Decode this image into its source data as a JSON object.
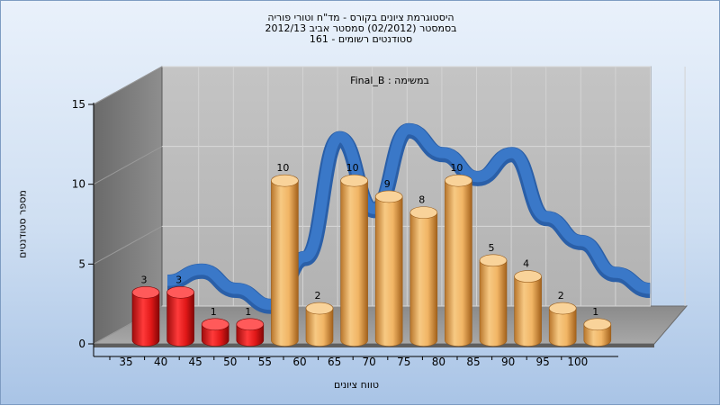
{
  "title_lines": [
    "היסטוגרמת ציונים בקורס - מד\"ח וטורי פוריה",
    "בסמסטר  (02/2012)  סמסטר אביב 2012/13",
    "סטודנטים רשומים - 161"
  ],
  "chart_data": {
    "type": "bar",
    "title": "היסטוגרמת ציונים בקורס - מד\"ח וטורי פוריה",
    "assignment_label": "במשימה : Final_B",
    "xlabel": "טווח ציונים",
    "ylabel": "מספר סטודנטים",
    "x_ticks": [
      "35",
      "40",
      "45",
      "50",
      "55",
      "60",
      "65",
      "70",
      "75",
      "80",
      "85",
      "90",
      "95",
      "100"
    ],
    "y_ticks": [
      "0",
      "5",
      "10",
      "15"
    ],
    "ylim": [
      0,
      15
    ],
    "grid": true,
    "legend": "none",
    "bars": [
      {
        "value": 3,
        "color": "red"
      },
      {
        "value": 3,
        "color": "red"
      },
      {
        "value": 1,
        "color": "red"
      },
      {
        "value": 1,
        "color": "red"
      },
      {
        "value": 10,
        "color": "orange"
      },
      {
        "value": 2,
        "color": "orange"
      },
      {
        "value": 10,
        "color": "orange"
      },
      {
        "value": 9,
        "color": "orange"
      },
      {
        "value": 8,
        "color": "orange"
      },
      {
        "value": 10,
        "color": "orange"
      },
      {
        "value": 5,
        "color": "orange"
      },
      {
        "value": 4,
        "color": "orange"
      },
      {
        "value": 2,
        "color": "orange"
      },
      {
        "value": 1,
        "color": "orange"
      }
    ],
    "trend_line": {
      "type": "line",
      "values": [
        2.5,
        3.2,
        2.0,
        1.0,
        4.0,
        11.5,
        7.0,
        12.0,
        10.5,
        9.0,
        10.5,
        6.5,
        5.0,
        3.0,
        2.0
      ]
    },
    "colors": {
      "fail": "#e01818",
      "pass": "#f0b460",
      "trend": "#3a78c8",
      "back_wall": "#bdbdbd",
      "side_wall": "#7d7d7d"
    }
  }
}
